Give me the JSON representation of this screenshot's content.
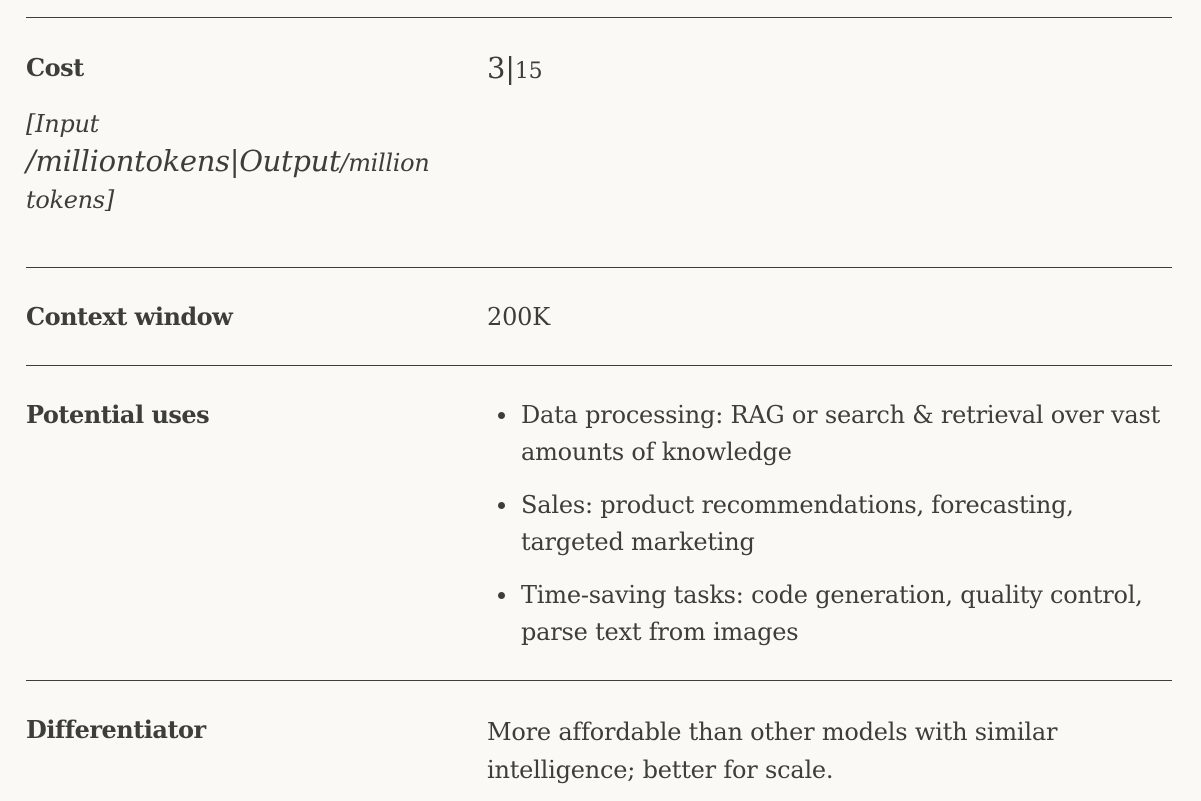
{
  "rows": {
    "cost": {
      "label": "Cost",
      "note_prefix": "[Input",
      "note_slash": "/",
      "note_big": "milliontokens|Output",
      "note_suffix": "/million",
      "note_end": "tokens]",
      "value_input": "3",
      "value_sep": "|",
      "value_output": "15"
    },
    "context": {
      "label": "Context window",
      "value": "200K"
    },
    "uses": {
      "label": "Potential uses",
      "items": [
        "Data processing: RAG or search & retrieval over vast amounts of knowledge",
        "Sales: product recommendations, forecasting, targeted marketing",
        "Time-saving tasks: code generation, quality control, parse text from images"
      ]
    },
    "differentiator": {
      "label": "Differentiator",
      "value": "More affordable than other models with similar intelligence; better for scale."
    }
  }
}
